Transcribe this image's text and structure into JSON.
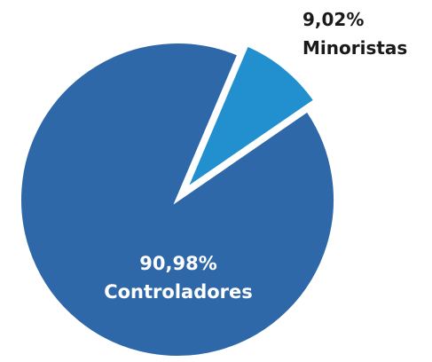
{
  "chart_data": {
    "type": "pie",
    "title": "",
    "slices": [
      {
        "name": "Controladores",
        "value": 90.98,
        "value_label": "90,98%",
        "color": "#2F68A9",
        "label_color": "#ffffff",
        "exploded": false
      },
      {
        "name": "Minoristas",
        "value": 9.02,
        "value_label": "9,02%",
        "color": "#2290CF",
        "label_color": "#1a1a1a",
        "exploded": true
      }
    ],
    "legend": "none",
    "grid": false
  }
}
